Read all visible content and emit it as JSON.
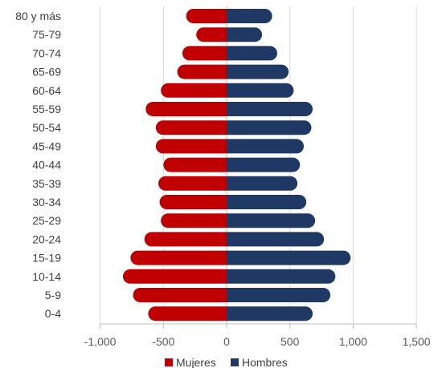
{
  "chart_data": {
    "type": "bar",
    "orientation": "horizontal",
    "layout": "population-pyramid",
    "categories": [
      "80 y más",
      "75-79",
      "70-74",
      "65-69",
      "60-64",
      "55-59",
      "50-54",
      "45-49",
      "40-44",
      "35-39",
      "30-34",
      "25-29",
      "20-24",
      "15-19",
      "10-14",
      "5-9",
      "0-4"
    ],
    "series": [
      {
        "name": "Mujeres",
        "color": "#c00000",
        "values": [
          -320,
          -240,
          -350,
          -390,
          -520,
          -640,
          -560,
          -560,
          -500,
          -540,
          -530,
          -520,
          -650,
          -760,
          -820,
          -740,
          -620
        ]
      },
      {
        "name": "Hombres",
        "color": "#1f3864",
        "values": [
          360,
          280,
          400,
          490,
          530,
          680,
          670,
          610,
          580,
          560,
          630,
          700,
          770,
          980,
          860,
          820,
          680
        ]
      }
    ],
    "xlim": [
      -1000,
      1500
    ],
    "xticks": [
      -1000,
      -500,
      0,
      500,
      1000,
      1500
    ],
    "xtick_labels": [
      "-1,000",
      "-500",
      "0",
      "500",
      "1,000",
      "1,500"
    ],
    "grid": true,
    "legend_position": "bottom"
  }
}
